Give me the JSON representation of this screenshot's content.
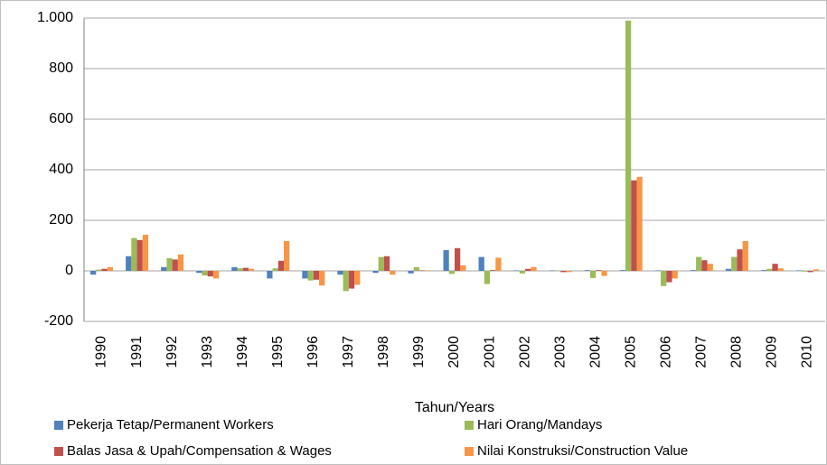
{
  "chart_data": {
    "type": "bar",
    "x_label": "Tahun/Years",
    "categories": [
      "1990",
      "1991",
      "1992",
      "1993",
      "1994",
      "1995",
      "1996",
      "1997",
      "1998",
      "1999",
      "2000",
      "2001",
      "2002",
      "2003",
      "2004",
      "2005",
      "2006",
      "2007",
      "2008",
      "2009",
      "2010"
    ],
    "series": [
      {
        "name": "Pekerja Tetap/Permanent Workers",
        "color": "#4f81bd",
        "values": [
          -15,
          58,
          15,
          -8,
          15,
          -30,
          -30,
          -15,
          -8,
          -10,
          82,
          55,
          2,
          2,
          3,
          3,
          2,
          3,
          8,
          3,
          2
        ]
      },
      {
        "name": "Hari Orang/Mandays",
        "color": "#9bbb59",
        "values": [
          5,
          130,
          50,
          -18,
          10,
          10,
          -38,
          -80,
          55,
          15,
          -12,
          -52,
          -10,
          2,
          -28,
          990,
          -60,
          55,
          55,
          8,
          -3
        ]
      },
      {
        "name": "Balas Jasa & Upah/Compensation & Wages",
        "color": "#c0504d",
        "values": [
          8,
          122,
          45,
          -22,
          12,
          40,
          -35,
          -70,
          58,
          2,
          90,
          3,
          8,
          -5,
          3,
          358,
          -45,
          42,
          85,
          28,
          -5
        ]
      },
      {
        "name": "Nilai Konstruksi/Construction Value",
        "color": "#f79646",
        "values": [
          15,
          143,
          65,
          -30,
          8,
          118,
          -58,
          -55,
          -15,
          2,
          22,
          52,
          15,
          -5,
          -20,
          372,
          -30,
          28,
          118,
          10,
          6
        ]
      }
    ],
    "ylim": [
      -200,
      1000
    ],
    "yticks": [
      -200,
      0,
      200,
      400,
      600,
      800,
      {
        "value": 1000,
        "label": "1.000"
      }
    ],
    "grid": true,
    "legend": "bottom"
  }
}
